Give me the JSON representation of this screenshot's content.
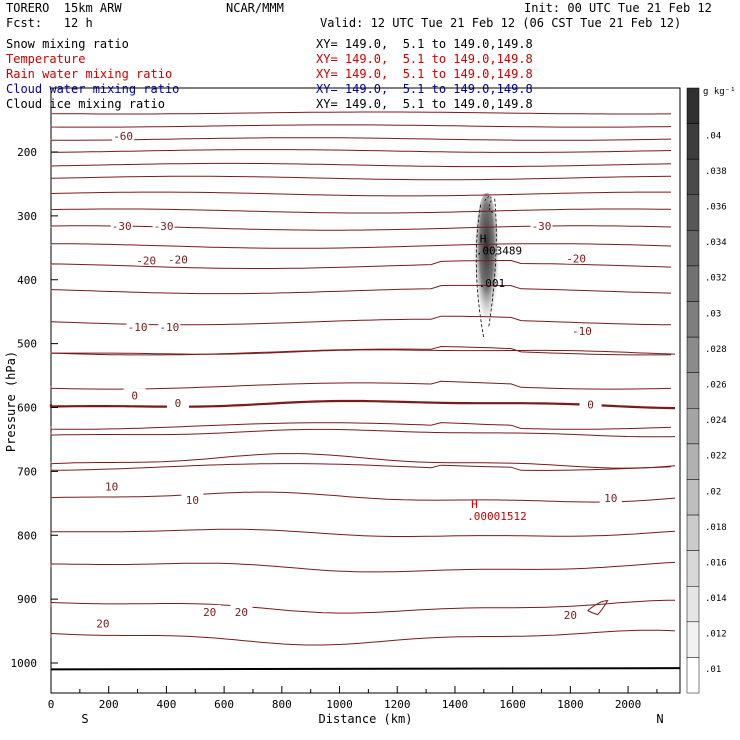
{
  "header": {
    "model": "TORERO  15km ARW",
    "center": "NCAR/MMM",
    "init": "Init: 00 UTC Tue 21 Feb 12",
    "fcst": "Fcst:   12 h",
    "valid": "Valid: 12 UTC Tue 21 Feb 12 (06 CST Tue 21 Feb 12)"
  },
  "fields": [
    {
      "name": "Snow mixing ratio",
      "xy": "XY= 149.0,  5.1 to 149.0,149.8",
      "color": "#000000"
    },
    {
      "name": "Temperature",
      "xy": "XY= 149.0,  5.1 to 149.0,149.8",
      "color": "#cc0000"
    },
    {
      "name": "Rain water mixing ratio",
      "xy": "XY= 149.0,  5.1 to 149.0,149.8",
      "color": "#cc0000"
    },
    {
      "name": "Cloud water mixing ratio",
      "xy": "XY= 149.0,  5.1 to 149.0,149.8",
      "color": "#0000aa"
    },
    {
      "name": "Cloud ice mixing ratio",
      "xy": "XY= 149.0,  5.1 to 149.0,149.8",
      "color": "#000000"
    }
  ],
  "colors": {
    "temperature_contour": "#7a1a1a",
    "rain_label": "#cc0000",
    "zero_isotherm": "#7a1a1a",
    "shading_max": "#303030"
  },
  "chart_data": {
    "type": "contour",
    "xlabel": "Distance (km)",
    "ylabel": "Pressure (hPa)",
    "x_ticks": [
      "0",
      "200",
      "400",
      "600",
      "800",
      "1000",
      "1200",
      "1400",
      "1600",
      "1800",
      "2000"
    ],
    "y_ticks": [
      "200",
      "300",
      "400",
      "500",
      "600",
      "700",
      "800",
      "900",
      "1000"
    ],
    "xlim": [
      0,
      2180
    ],
    "ylim": [
      1050,
      100
    ],
    "endpoints": {
      "left": "S",
      "right": "N"
    },
    "colorbar": {
      "unit": "g kg⁻¹",
      "labels": [
        ".04",
        ".038",
        ".036",
        ".034",
        ".032",
        ".03",
        ".028",
        ".026",
        ".024",
        ".022",
        ".02",
        ".018",
        ".016",
        ".014",
        ".012",
        ".01"
      ],
      "values": [
        0.04,
        0.038,
        0.036,
        0.034,
        0.032,
        0.03,
        0.028,
        0.026,
        0.024,
        0.022,
        0.02,
        0.018,
        0.016,
        0.014,
        0.012,
        0.01
      ]
    },
    "isotherm_labels": [
      {
        "text": "-60",
        "x": 250,
        "p": 175
      },
      {
        "text": "-30",
        "x": 245,
        "p": 316
      },
      {
        "text": "-30",
        "x": 390,
        "p": 316
      },
      {
        "text": "-30",
        "x": 1700,
        "p": 316
      },
      {
        "text": "-20",
        "x": 330,
        "p": 370
      },
      {
        "text": "-20",
        "x": 440,
        "p": 368
      },
      {
        "text": "-20",
        "x": 1820,
        "p": 367
      },
      {
        "text": "-10",
        "x": 300,
        "p": 474
      },
      {
        "text": "-10",
        "x": 410,
        "p": 474
      },
      {
        "text": "-10",
        "x": 1840,
        "p": 480
      },
      {
        "text": "0",
        "x": 290,
        "p": 581
      },
      {
        "text": "0",
        "x": 440,
        "p": 593
      },
      {
        "text": "0",
        "x": 1870,
        "p": 595
      },
      {
        "text": "10",
        "x": 210,
        "p": 724
      },
      {
        "text": "10",
        "x": 490,
        "p": 745
      },
      {
        "text": "10",
        "x": 1940,
        "p": 742
      },
      {
        "text": "20",
        "x": 550,
        "p": 920
      },
      {
        "text": "20",
        "x": 660,
        "p": 920
      },
      {
        "text": "20",
        "x": 1800,
        "p": 925
      },
      {
        "text": "20",
        "x": 180,
        "p": 938
      }
    ],
    "extrema": [
      {
        "symbol": "H",
        "value": ".003489",
        "x": 1500,
        "p": 354,
        "field": "Snow mixing ratio",
        "color": "#000000"
      },
      {
        "symbol": "",
        "value": ".001",
        "x": 1510,
        "p": 405,
        "field": "Snow mixing ratio",
        "color": "#000000"
      },
      {
        "symbol": "H",
        "value": ".00001512",
        "x": 1470,
        "p": 770,
        "field": "Rain water mixing ratio",
        "color": "#cc0000"
      }
    ],
    "snow_plume": {
      "x_center": 1510,
      "p_top": 295,
      "p_bottom": 475
    }
  }
}
